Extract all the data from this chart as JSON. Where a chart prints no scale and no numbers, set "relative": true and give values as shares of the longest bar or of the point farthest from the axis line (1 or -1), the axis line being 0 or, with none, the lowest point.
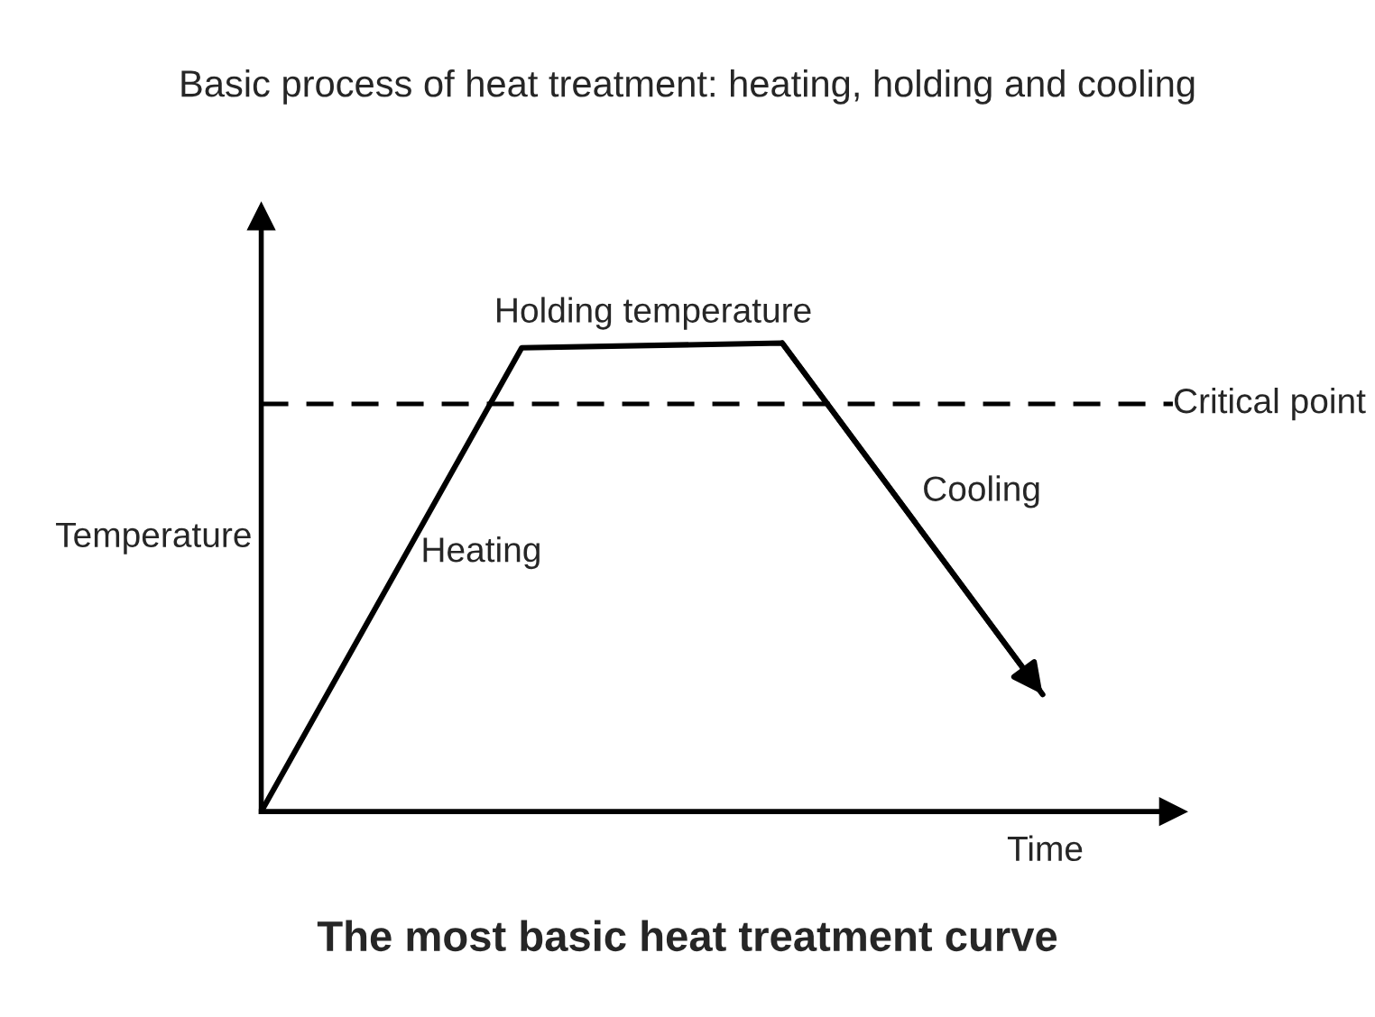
{
  "chart_data": {
    "type": "line",
    "relative": true,
    "title": "Basic process of heat treatment: heating, holding and cooling",
    "xlabel": "Time",
    "ylabel": "Temperature",
    "legend": false,
    "marker": "none",
    "line_style": "solid",
    "categories": [
      null,
      null,
      null,
      null
    ],
    "series": [
      {
        "color": "#000000",
        "values": [
          0,
          0.99,
          1,
          0.25
        ]
      }
    ],
    "ref_lines": [
      {
        "axis": "y",
        "value": 0.87,
        "label": "Critical point",
        "color": "#000000",
        "line_style": "dashed"
      }
    ],
    "annotations": [
      "Holding temperature",
      "Heating",
      "Cooling",
      "The most basic heat treatment curve"
    ]
  }
}
